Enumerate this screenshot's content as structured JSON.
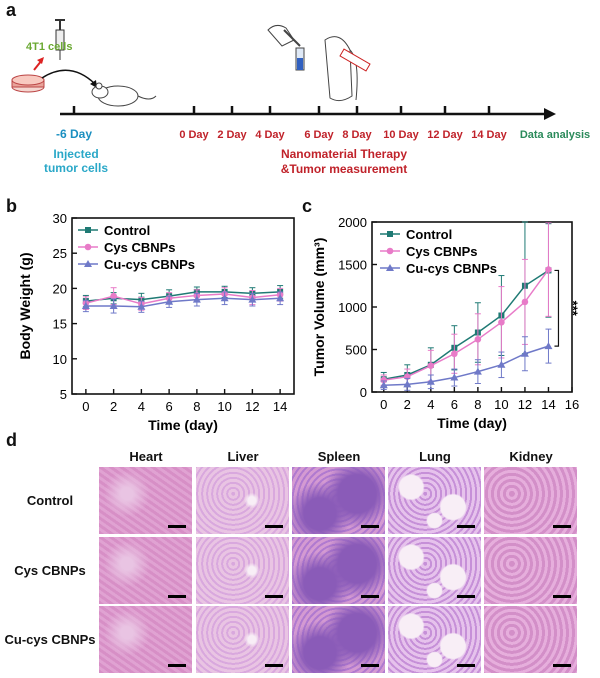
{
  "panels": {
    "a": "a",
    "b": "b",
    "c": "c",
    "d": "d"
  },
  "timeline": {
    "cells_label": "4T1 cells",
    "start_day": "-6 Day",
    "start_caption_1": "Injected",
    "start_caption_2": "tumor cells",
    "days": [
      "0 Day",
      "2 Day",
      "4 Day",
      "6 Day",
      "8 Day",
      "10 Day",
      "12 Day",
      "14 Day"
    ],
    "therapy_1": "Nanomaterial Therapy",
    "therapy_2": "&Tumor measurement",
    "end_label": "Data analysis",
    "colors": {
      "start": "#1a8fc0",
      "days": "#c0222a",
      "cells": "#6aa832",
      "end": "#2a8a5a"
    }
  },
  "chart_data": [
    {
      "type": "line",
      "title": "",
      "xlabel": "Time (day)",
      "ylabel": "Body Weight (g)",
      "xlim": [
        -1,
        15
      ],
      "ylim": [
        5,
        30
      ],
      "xticks": [
        0,
        2,
        4,
        6,
        8,
        10,
        12,
        14
      ],
      "yticks": [
        5,
        10,
        15,
        20,
        25,
        30
      ],
      "x": [
        0,
        2,
        4,
        6,
        8,
        10,
        12,
        14
      ],
      "legend": "top-left",
      "series": [
        {
          "name": "Control",
          "color": "#1f7a74",
          "marker": "square",
          "values": [
            18.2,
            18.6,
            18.4,
            18.9,
            19.5,
            19.5,
            19.3,
            19.5
          ],
          "err": [
            0.8,
            0.8,
            0.9,
            0.9,
            0.7,
            0.8,
            0.8,
            0.9
          ]
        },
        {
          "name": "Cys CBNPs",
          "color": "#e87bc8",
          "marker": "circle",
          "values": [
            17.9,
            18.9,
            17.8,
            18.6,
            19.0,
            19.2,
            18.7,
            19.1
          ],
          "err": [
            0.9,
            1.2,
            0.9,
            0.8,
            0.8,
            0.9,
            1.0,
            0.9
          ]
        },
        {
          "name": "Cu-cys CBNPs",
          "color": "#6f79c8",
          "marker": "triangle",
          "values": [
            17.5,
            17.5,
            17.4,
            18.1,
            18.4,
            18.6,
            18.4,
            18.6
          ],
          "err": [
            0.8,
            1.0,
            0.8,
            0.8,
            0.9,
            0.9,
            0.9,
            0.9
          ]
        }
      ]
    },
    {
      "type": "line",
      "title": "",
      "xlabel": "Time (day)",
      "ylabel": "Tumor Volume (mm³)",
      "xlim": [
        -1,
        16
      ],
      "ylim": [
        0,
        2000
      ],
      "xticks": [
        0,
        2,
        4,
        6,
        8,
        10,
        12,
        14,
        16
      ],
      "yticks": [
        0,
        500,
        1000,
        1500,
        2000
      ],
      "x": [
        0,
        2,
        4,
        6,
        8,
        10,
        12,
        14
      ],
      "legend": "top-left",
      "annotation": "***",
      "series": [
        {
          "name": "Control",
          "color": "#1f7a74",
          "marker": "square",
          "values": [
            150,
            200,
            320,
            520,
            700,
            900,
            1250,
            1430
          ],
          "err": [
            80,
            120,
            200,
            260,
            350,
            470,
            800,
            550
          ]
        },
        {
          "name": "Cys CBNPs",
          "color": "#e87bc8",
          "marker": "circle",
          "values": [
            140,
            180,
            310,
            450,
            620,
            820,
            1060,
            1440
          ],
          "err": [
            60,
            90,
            180,
            230,
            300,
            420,
            500,
            550
          ]
        },
        {
          "name": "Cu-cys CBNPs",
          "color": "#6f79c8",
          "marker": "triangle",
          "values": [
            80,
            90,
            120,
            170,
            240,
            320,
            450,
            540
          ],
          "err": [
            50,
            70,
            80,
            100,
            140,
            150,
            200,
            200
          ]
        }
      ]
    }
  ],
  "histology": {
    "columns": [
      "Heart",
      "Liver",
      "Spleen",
      "Lung",
      "Kidney"
    ],
    "rows": [
      "Control",
      "Cys CBNPs",
      "Cu-cys CBNPs"
    ],
    "palette": {
      "tissue": "#d78fc6",
      "pale": "#e9c4e3",
      "dense": "#8a5bb8",
      "nuclei": "#5a3a9a",
      "white": "#f8eef6"
    }
  }
}
